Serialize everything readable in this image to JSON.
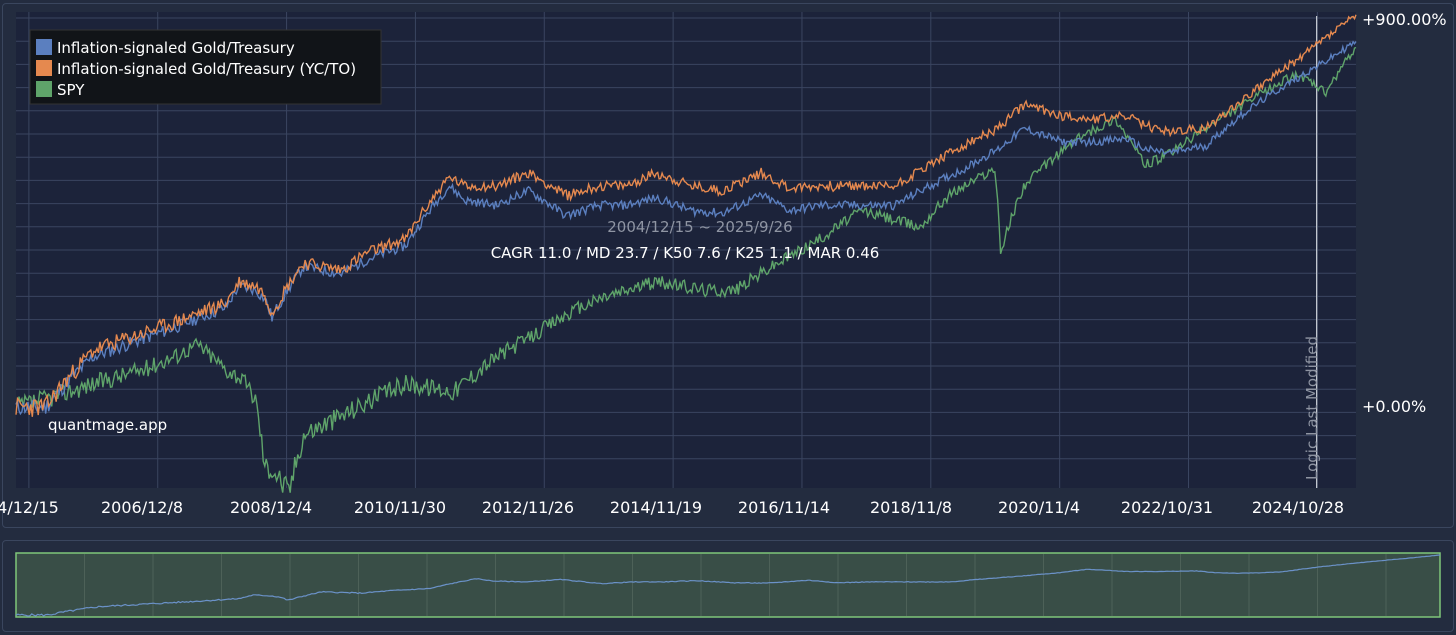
{
  "chart_data": {
    "type": "line",
    "y_scale": "log",
    "x_date_range": [
      "2004-12-15",
      "2025-09-26"
    ],
    "x_tick_labels": [
      "4/12/15",
      "2006/12/8",
      "2008/12/4",
      "2010/11/30",
      "2012/11/26",
      "2014/11/19",
      "2016/11/14",
      "2018/11/8",
      "2020/11/4",
      "2022/10/31",
      "2024/10/28"
    ],
    "y_tick_labels": {
      "top": "+900.00%",
      "bottom": "+0.00%"
    },
    "ylim_return_pct": [
      -40,
      950
    ],
    "grid": true,
    "legend_placement": "top-left",
    "series": [
      {
        "name": "Inflation-signaled Gold/Treasury",
        "color": "#5b7fbf",
        "x": [
          "2004-12-15",
          "2005-06-01",
          "2006-03-01",
          "2006-12-08",
          "2007-06-01",
          "2008-03-17",
          "2008-06-01",
          "2008-09-01",
          "2008-10-24",
          "2008-12-04",
          "2009-06-01",
          "2010-01-01",
          "2010-06-01",
          "2011-01-01",
          "2011-09-05",
          "2011-12-01",
          "2012-06-01",
          "2012-11-26",
          "2013-06-27",
          "2013-12-31",
          "2014-06-01",
          "2014-11-19",
          "2015-06-01",
          "2015-12-01",
          "2016-07-06",
          "2016-12-15",
          "2017-06-01",
          "2018-01-01",
          "2018-08-01",
          "2019-09-01",
          "2020-03-09",
          "2020-08-06",
          "2021-03-08",
          "2021-09-01",
          "2022-03-08",
          "2022-06-15",
          "2022-10-31",
          "2023-06-01",
          "2024-01-01",
          "2024-10-28",
          "2025-04-21",
          "2025-09-26"
        ],
        "y": [
          0,
          0,
          35,
          50,
          60,
          80,
          105,
          100,
          90,
          70,
          130,
          120,
          140,
          160,
          270,
          240,
          230,
          260,
          210,
          230,
          230,
          245,
          220,
          215,
          250,
          220,
          230,
          230,
          230,
          310,
          360,
          420,
          380,
          380,
          390,
          360,
          350,
          370,
          470,
          600,
          680,
          770
        ]
      },
      {
        "name": "Inflation-signaled Gold/Treasury (YC/TO)",
        "color": "#e5894f",
        "x": [
          "2004-12-15",
          "2005-06-01",
          "2006-03-01",
          "2006-12-08",
          "2007-06-01",
          "2008-03-17",
          "2008-06-01",
          "2008-09-01",
          "2008-10-24",
          "2008-12-04",
          "2009-06-01",
          "2010-01-01",
          "2010-06-01",
          "2011-01-01",
          "2011-09-05",
          "2011-12-01",
          "2012-06-01",
          "2012-11-26",
          "2013-06-27",
          "2013-12-31",
          "2014-06-01",
          "2014-11-19",
          "2015-06-01",
          "2015-12-01",
          "2016-07-06",
          "2016-12-15",
          "2017-06-01",
          "2018-01-01",
          "2018-08-01",
          "2019-09-01",
          "2020-03-09",
          "2020-08-06",
          "2021-03-08",
          "2021-09-01",
          "2022-03-08",
          "2022-06-15",
          "2022-10-31",
          "2023-06-01",
          "2024-01-01",
          "2024-10-28",
          "2025-04-21",
          "2025-09-26"
        ],
        "y": [
          0,
          0,
          40,
          55,
          65,
          85,
          110,
          105,
          95,
          75,
          135,
          125,
          150,
          170,
          290,
          270,
          270,
          300,
          250,
          270,
          270,
          300,
          270,
          260,
          300,
          265,
          270,
          270,
          270,
          370,
          420,
          500,
          460,
          450,
          460,
          430,
          410,
          420,
          520,
          680,
          800,
          920
        ]
      },
      {
        "name": "SPY",
        "color": "#5fa46a",
        "x": [
          "2004-12-15",
          "2005-06-01",
          "2006-03-01",
          "2006-12-08",
          "2007-06-01",
          "2007-10-09",
          "2008-03-17",
          "2008-06-01",
          "2008-09-01",
          "2008-10-24",
          "2008-12-04",
          "2009-03-09",
          "2009-06-01",
          "2010-01-01",
          "2010-07-01",
          "2011-01-01",
          "2011-10-03",
          "2012-06-01",
          "2012-11-26",
          "2013-06-01",
          "2014-01-01",
          "2014-11-19",
          "2015-08-24",
          "2016-02-11",
          "2016-11-14",
          "2017-06-01",
          "2018-01-26",
          "2018-12-24",
          "2019-06-01",
          "2020-02-19",
          "2020-03-23",
          "2020-08-01",
          "2021-01-01",
          "2021-06-01",
          "2022-01-03",
          "2022-06-16",
          "2022-10-12",
          "2023-06-01",
          "2024-01-01",
          "2024-10-28",
          "2025-04-08",
          "2025-09-26"
        ],
        "y": [
          0,
          5,
          15,
          25,
          35,
          45,
          25,
          20,
          5,
          -30,
          -30,
          -40,
          -15,
          -5,
          5,
          15,
          10,
          35,
          50,
          70,
          90,
          110,
          100,
          100,
          140,
          170,
          220,
          190,
          250,
          310,
          150,
          270,
          330,
          390,
          450,
          320,
          340,
          420,
          500,
          620,
          540,
          740
        ]
      }
    ],
    "annotations": [
      {
        "text": "2004/12/15 ~ 2025/9/26"
      },
      {
        "text": "CAGR 11.0 / MD 23.7 / K50 7.6 / K25 1.1 / MAR 0.46"
      },
      {
        "text": "quantmage.app"
      },
      {
        "text": "Logic Last Modified",
        "date": "2025-02-15"
      }
    ]
  },
  "navigator": {
    "fill_color": "#394e47",
    "line_color": "#6b92c9",
    "border_color": "#7fc77a"
  }
}
